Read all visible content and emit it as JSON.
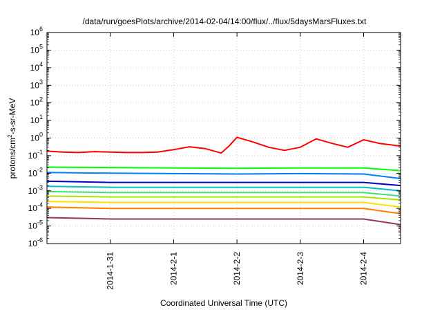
{
  "chart_data": {
    "type": "line",
    "title": "/data/run/goesPlots/archive/2014-02-04/14:00/flux/../flux/5daysMarsFluxes.txt",
    "xlabel": "Coordinated Universal Time (UTC)",
    "ylabel": {
      "prefix": "protons/cm",
      "superscript": "2",
      "suffix": "-s-sr-MeV"
    },
    "yscale": "log",
    "ylim": [
      1e-06,
      1000000.0
    ],
    "xlim": [
      "2014-01-30 00:00",
      "2014-02-04 14:00"
    ],
    "grid": true,
    "legend": "none",
    "y_ticks": [
      {
        "base": "10",
        "exp": "-6"
      },
      {
        "base": "10",
        "exp": "-5"
      },
      {
        "base": "10",
        "exp": "-4"
      },
      {
        "base": "10",
        "exp": "-3"
      },
      {
        "base": "10",
        "exp": "-2"
      },
      {
        "base": "10",
        "exp": "-1"
      },
      {
        "base": "10",
        "exp": "0"
      },
      {
        "base": "10",
        "exp": "1"
      },
      {
        "base": "10",
        "exp": "2"
      },
      {
        "base": "10",
        "exp": "3"
      },
      {
        "base": "10",
        "exp": "4"
      },
      {
        "base": "10",
        "exp": "5"
      },
      {
        "base": "10",
        "exp": "6"
      }
    ],
    "x_ticks": [
      {
        "label": "2014-1-31",
        "date": "2014-01-31 00:00"
      },
      {
        "label": "2014-2-1",
        "date": "2014-02-01 00:00"
      },
      {
        "label": "2014-2-2",
        "date": "2014-02-02 00:00"
      },
      {
        "label": "2014-2-3",
        "date": "2014-02-03 00:00"
      },
      {
        "label": "2014-2-4",
        "date": "2014-02-04 00:00"
      }
    ],
    "series": [
      {
        "color": "#ff0000",
        "points": [
          [
            "2014-01-30 00:00",
            0.18
          ],
          [
            "2014-01-30 06:00",
            0.16
          ],
          [
            "2014-01-30 12:00",
            0.15
          ],
          [
            "2014-01-30 18:00",
            0.17
          ],
          [
            "2014-01-31 00:00",
            0.16
          ],
          [
            "2014-01-31 06:00",
            0.15
          ],
          [
            "2014-01-31 12:00",
            0.15
          ],
          [
            "2014-01-31 18:00",
            0.16
          ],
          [
            "2014-02-01 00:00",
            0.22
          ],
          [
            "2014-02-01 06:00",
            0.32
          ],
          [
            "2014-02-01 12:00",
            0.25
          ],
          [
            "2014-02-01 18:00",
            0.14
          ],
          [
            "2014-02-01 21:00",
            0.35
          ],
          [
            "2014-02-02 00:00",
            1.1
          ],
          [
            "2014-02-02 06:00",
            0.6
          ],
          [
            "2014-02-02 12:00",
            0.3
          ],
          [
            "2014-02-02 18:00",
            0.2
          ],
          [
            "2014-02-03 00:00",
            0.3
          ],
          [
            "2014-02-03 06:00",
            0.9
          ],
          [
            "2014-02-03 12:00",
            0.5
          ],
          [
            "2014-02-03 18:00",
            0.3
          ],
          [
            "2014-02-04 00:00",
            0.8
          ],
          [
            "2014-02-04 06:00",
            0.5
          ],
          [
            "2014-02-04 14:00",
            0.35
          ]
        ]
      },
      {
        "color": "#00ff00",
        "points": [
          [
            "2014-01-30 00:00",
            0.022
          ],
          [
            "2014-01-31 00:00",
            0.021
          ],
          [
            "2014-02-01 00:00",
            0.02
          ],
          [
            "2014-02-02 00:00",
            0.019
          ],
          [
            "2014-02-03 00:00",
            0.02
          ],
          [
            "2014-02-04 00:00",
            0.02
          ],
          [
            "2014-02-04 14:00",
            0.014
          ]
        ]
      },
      {
        "color": "#0080ff",
        "points": [
          [
            "2014-01-30 00:00",
            0.011
          ],
          [
            "2014-01-31 00:00",
            0.01
          ],
          [
            "2014-02-01 00:00",
            0.0095
          ],
          [
            "2014-02-02 00:00",
            0.009
          ],
          [
            "2014-02-03 00:00",
            0.0095
          ],
          [
            "2014-02-04 00:00",
            0.009
          ],
          [
            "2014-02-04 14:00",
            0.005
          ]
        ]
      },
      {
        "color": "#0000cc",
        "points": [
          [
            "2014-01-30 00:00",
            0.0035
          ],
          [
            "2014-01-31 00:00",
            0.003
          ],
          [
            "2014-02-01 00:00",
            0.003
          ],
          [
            "2014-02-02 00:00",
            0.003
          ],
          [
            "2014-02-03 00:00",
            0.003
          ],
          [
            "2014-02-04 00:00",
            0.003
          ],
          [
            "2014-02-04 14:00",
            0.002
          ]
        ]
      },
      {
        "color": "#00c0c0",
        "points": [
          [
            "2014-01-30 00:00",
            0.0018
          ],
          [
            "2014-01-31 00:00",
            0.0016
          ],
          [
            "2014-02-01 00:00",
            0.0016
          ],
          [
            "2014-02-02 00:00",
            0.0016
          ],
          [
            "2014-02-03 00:00",
            0.0016
          ],
          [
            "2014-02-04 00:00",
            0.0016
          ],
          [
            "2014-02-04 14:00",
            0.001
          ]
        ]
      },
      {
        "color": "#40e080",
        "points": [
          [
            "2014-01-30 00:00",
            0.0009
          ],
          [
            "2014-01-31 00:00",
            0.0008
          ],
          [
            "2014-02-01 00:00",
            0.0008
          ],
          [
            "2014-02-02 00:00",
            0.0008
          ],
          [
            "2014-02-03 00:00",
            0.0008
          ],
          [
            "2014-02-04 00:00",
            0.0008
          ],
          [
            "2014-02-04 14:00",
            0.0005
          ]
        ]
      },
      {
        "color": "#b0e000",
        "points": [
          [
            "2014-01-30 00:00",
            0.0005
          ],
          [
            "2014-01-31 00:00",
            0.00045
          ],
          [
            "2014-02-01 00:00",
            0.00045
          ],
          [
            "2014-02-02 00:00",
            0.00045
          ],
          [
            "2014-02-03 00:00",
            0.00045
          ],
          [
            "2014-02-04 00:00",
            0.00045
          ],
          [
            "2014-02-04 14:00",
            0.0003
          ]
        ]
      },
      {
        "color": "#ffe000",
        "points": [
          [
            "2014-01-30 00:00",
            0.00025
          ],
          [
            "2014-01-31 00:00",
            0.00022
          ],
          [
            "2014-02-01 00:00",
            0.00022
          ],
          [
            "2014-02-02 00:00",
            0.00022
          ],
          [
            "2014-02-03 00:00",
            0.00022
          ],
          [
            "2014-02-04 00:00",
            0.00022
          ],
          [
            "2014-02-04 14:00",
            0.00012
          ]
        ]
      },
      {
        "color": "#ff8000",
        "points": [
          [
            "2014-01-30 00:00",
            0.00012
          ],
          [
            "2014-01-31 00:00",
            0.0001
          ],
          [
            "2014-02-01 00:00",
            0.0001
          ],
          [
            "2014-02-02 00:00",
            0.0001
          ],
          [
            "2014-02-03 00:00",
            0.0001
          ],
          [
            "2014-02-04 00:00",
            0.0001
          ],
          [
            "2014-02-04 14:00",
            5e-05
          ]
        ]
      },
      {
        "color": "#993366",
        "points": [
          [
            "2014-01-30 00:00",
            3e-05
          ],
          [
            "2014-01-31 00:00",
            2.5e-05
          ],
          [
            "2014-02-01 00:00",
            2.5e-05
          ],
          [
            "2014-02-02 00:00",
            2.5e-05
          ],
          [
            "2014-02-03 00:00",
            2.5e-05
          ],
          [
            "2014-02-04 00:00",
            2.5e-05
          ],
          [
            "2014-02-04 14:00",
            1.2e-05
          ]
        ]
      }
    ]
  }
}
